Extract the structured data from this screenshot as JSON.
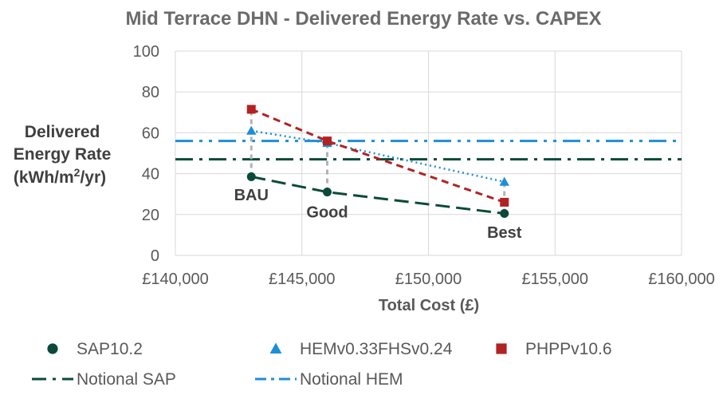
{
  "chart_data": {
    "type": "line",
    "title": "Mid Terrace DHN - Delivered Energy Rate vs. CAPEX",
    "xlabel": "Total Cost (£)",
    "ylabel_lines": [
      "Delivered",
      "Energy Rate",
      "(kWh/m",
      "2",
      "/yr)"
    ],
    "xlim": [
      140000,
      160000
    ],
    "ylim": [
      0,
      100
    ],
    "x_ticks": [
      140000,
      145000,
      150000,
      155000,
      160000
    ],
    "x_tick_labels": [
      "£140,000",
      "£145,000",
      "£150,000",
      "£155,000",
      "£160,000"
    ],
    "y_ticks": [
      0,
      20,
      40,
      60,
      80,
      100
    ],
    "y_tick_labels": [
      "0",
      "20",
      "40",
      "60",
      "80",
      "100"
    ],
    "grid": true,
    "legend_position": "bottom",
    "series": [
      {
        "name": "SAP10.2",
        "marker": "circle",
        "color": "#0b4a3a",
        "line": "long-dash",
        "points": [
          [
            143000,
            38.5
          ],
          [
            146000,
            31
          ],
          [
            153000,
            20.5
          ]
        ]
      },
      {
        "name": "HEMv0.33FHSv0.24",
        "marker": "triangle",
        "color": "#1e8ed8",
        "line": "dotted",
        "points": [
          [
            143000,
            61
          ],
          [
            146000,
            55
          ],
          [
            153000,
            36
          ]
        ]
      },
      {
        "name": "PHPPv10.6",
        "marker": "square",
        "color": "#b22222",
        "line": "dashed",
        "points": [
          [
            143000,
            71.5
          ],
          [
            146000,
            56
          ],
          [
            153000,
            26
          ]
        ]
      }
    ],
    "reference_lines": [
      {
        "name": "Notional SAP",
        "y": 47,
        "color": "#0b4a3a",
        "style": "dash-dot"
      },
      {
        "name": "Notional HEM",
        "y": 56,
        "color": "#1e8ed8",
        "style": "dash-dot-dot"
      }
    ],
    "annotations": [
      {
        "text": "BAU",
        "x": 143000,
        "y": 27
      },
      {
        "text": "Good",
        "x": 146000,
        "y": 18.5
      },
      {
        "text": "Best",
        "x": 153000,
        "y": 8.5
      }
    ],
    "connector_color": "#b3b3b3"
  }
}
